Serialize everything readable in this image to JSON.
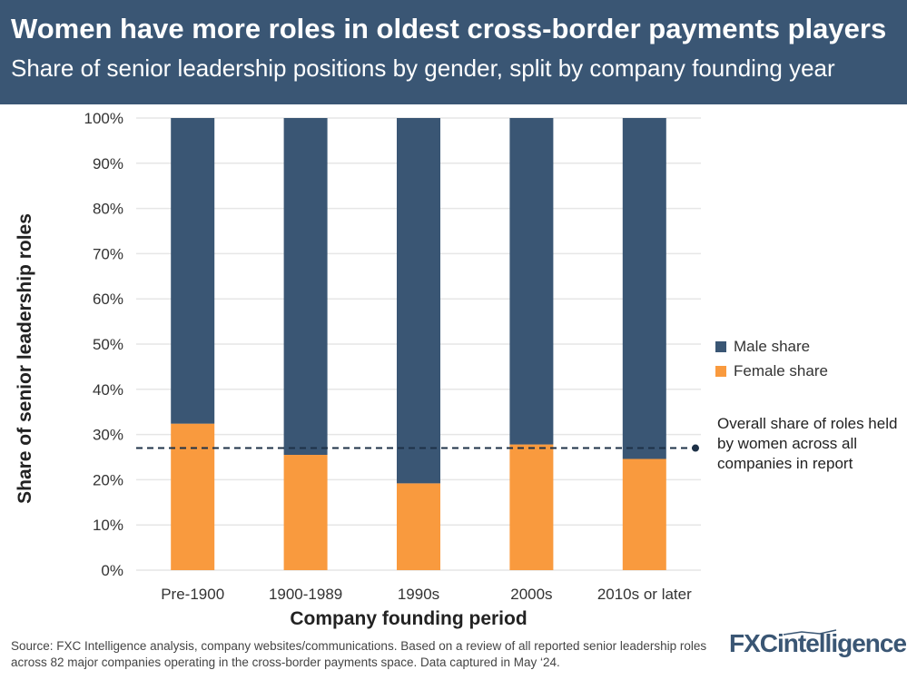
{
  "header": {
    "title": "Women have more roles in oldest cross-border payments players",
    "subtitle": "Share of senior leadership positions by gender, split by company founding year"
  },
  "chart_data": {
    "type": "bar",
    "stacked": true,
    "categories": [
      "Pre-1900",
      "1900-1989",
      "1990s",
      "2000s",
      "2010s or later"
    ],
    "series": [
      {
        "name": "Female share",
        "color": "#f99a3e",
        "values": [
          32.4,
          25.5,
          19.2,
          27.8,
          24.6
        ]
      },
      {
        "name": "Male share",
        "color": "#3a5674",
        "values": [
          67.6,
          74.5,
          80.8,
          72.2,
          75.4
        ]
      }
    ],
    "xlabel": "Company founding period",
    "ylabel": "Share of senior leadership roles",
    "ylim": [
      0,
      100
    ],
    "yticks": [
      "0%",
      "10%",
      "20%",
      "30%",
      "40%",
      "50%",
      "60%",
      "70%",
      "80%",
      "90%",
      "100%"
    ],
    "grid": true,
    "legend_placement": "right",
    "reference_line": {
      "value": 27.0,
      "label": "Overall share of roles held by women across all companies in report"
    }
  },
  "legend": {
    "male": "Male share",
    "female": "Female share"
  },
  "footer": {
    "source": "Source: FXC Intelligence analysis, company websites/communications. Based on a review of all reported senior leadership roles across 82 major companies operating in the cross-border payments space. Data captured in May ‘24.",
    "logo": "FXCintelligence"
  }
}
